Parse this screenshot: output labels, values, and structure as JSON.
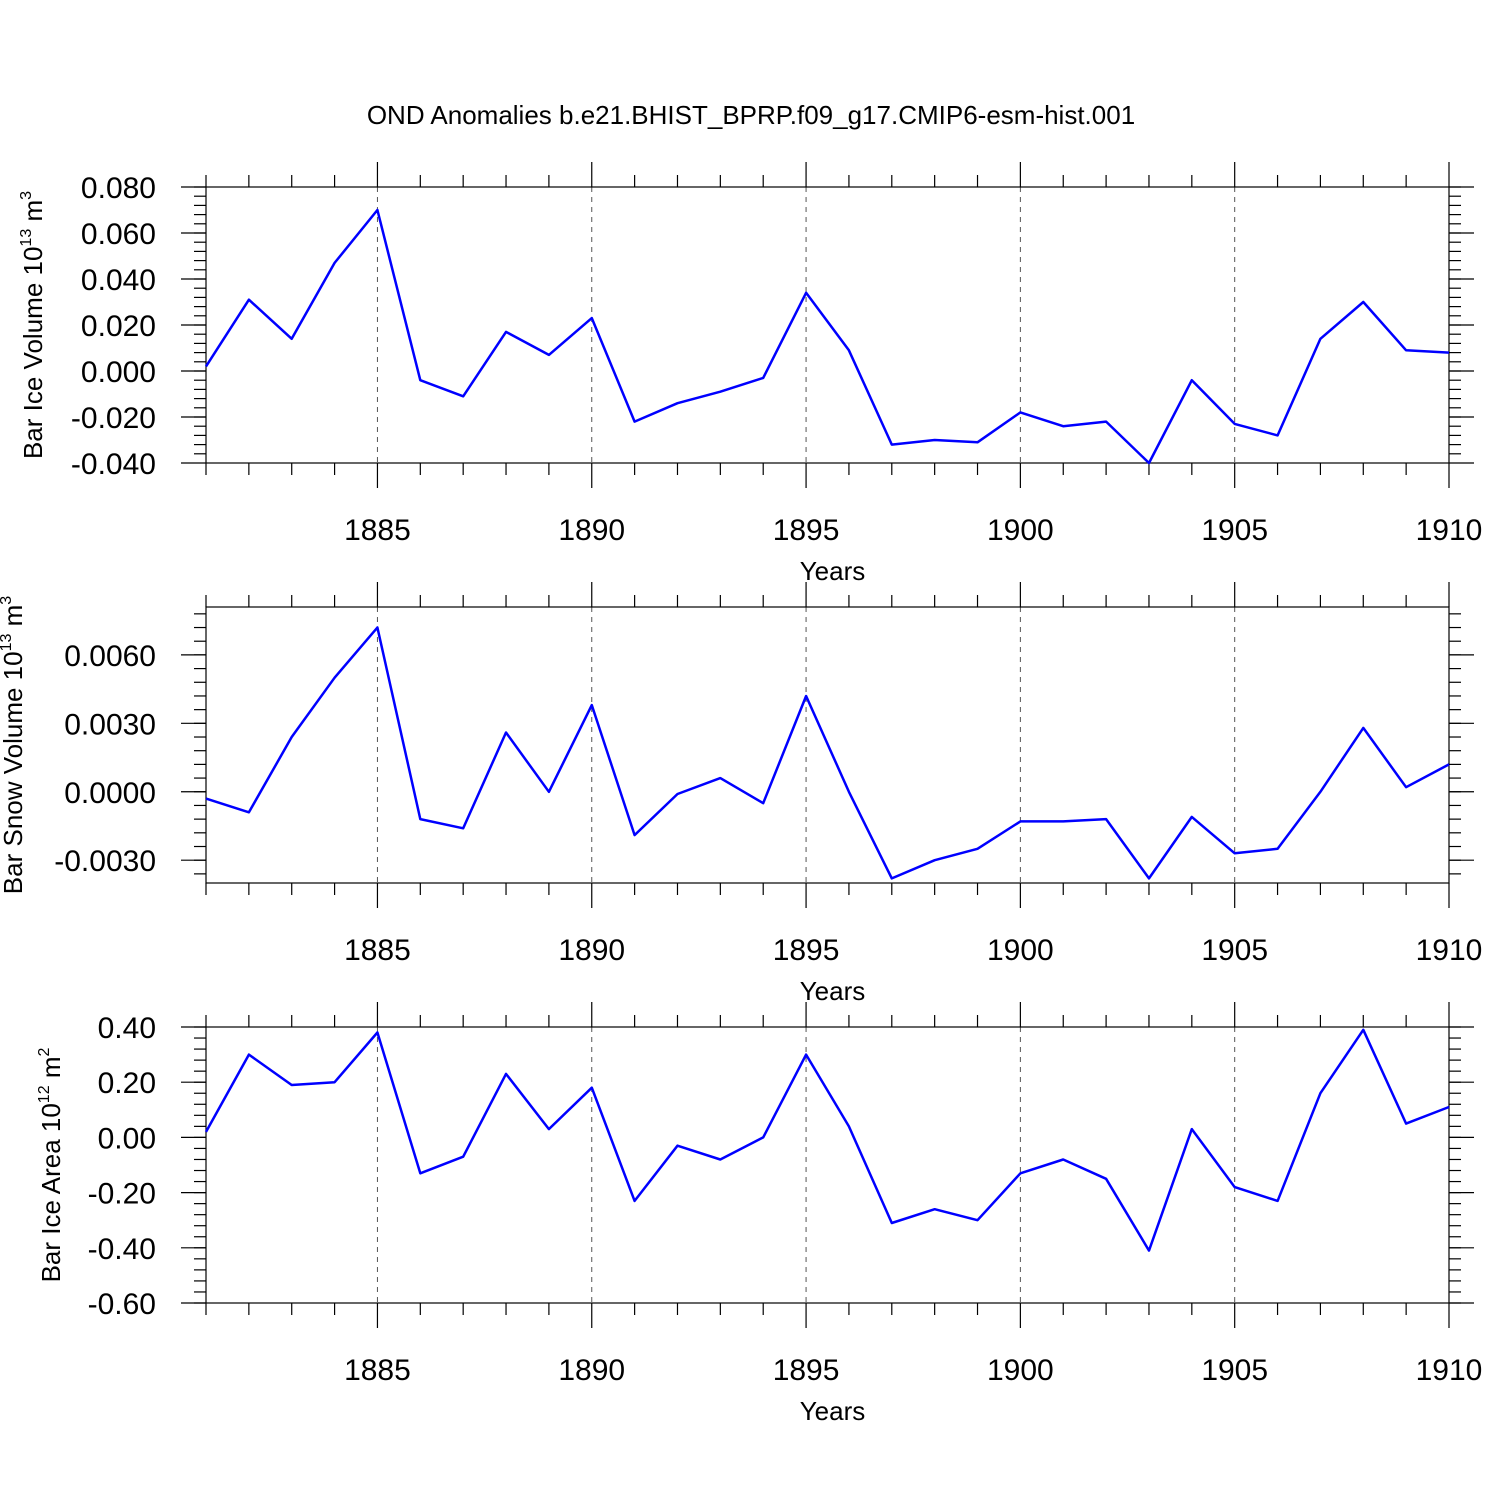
{
  "title": "OND Anomalies b.e21.BHIST_BPRP.f09_g17.CMIP6-esm-hist.001",
  "colors": {
    "line": "#0000ff",
    "axis": "#000000",
    "grid": "#555555"
  },
  "chart_data": [
    {
      "type": "line",
      "ylabel": {
        "text": "Bar Ice Volume 10",
        "sup": "13",
        "unit": " m",
        "unit_sup": "3"
      },
      "xlabel": "Years",
      "xlim": [
        1881,
        1910
      ],
      "ylim": [
        -0.04,
        0.08
      ],
      "xticks": [
        "1885",
        "1890",
        "1895",
        "1900",
        "1905",
        "1910"
      ],
      "yticks": [
        "0.080",
        "0.060",
        "0.040",
        "0.020",
        "0.000",
        "-0.020",
        "-0.040"
      ],
      "yticks_values": [
        0.08,
        0.06,
        0.04,
        0.02,
        0.0,
        -0.02,
        -0.04
      ],
      "grid": "vertical-dashed",
      "x": [
        1881,
        1882,
        1883,
        1884,
        1885,
        1886,
        1887,
        1888,
        1889,
        1890,
        1891,
        1892,
        1893,
        1894,
        1895,
        1896,
        1897,
        1898,
        1899,
        1900,
        1901,
        1902,
        1903,
        1904,
        1905,
        1906,
        1907,
        1908,
        1909,
        1910
      ],
      "series": [
        {
          "values": [
            0.002,
            0.031,
            0.014,
            0.047,
            0.07,
            -0.004,
            -0.011,
            0.017,
            0.007,
            0.023,
            -0.022,
            -0.014,
            -0.009,
            -0.003,
            0.034,
            0.009,
            -0.032,
            -0.03,
            -0.031,
            -0.018,
            -0.024,
            -0.022,
            -0.04,
            -0.004,
            -0.023,
            -0.028,
            0.014,
            0.03,
            0.009,
            0.008
          ]
        }
      ]
    },
    {
      "type": "line",
      "ylabel": {
        "text": "Bar Snow Volume 10",
        "sup": "13",
        "unit": " m",
        "unit_sup": "3"
      },
      "xlabel": "Years",
      "xlim": [
        1881,
        1910
      ],
      "ylim": [
        -0.004,
        0.0081
      ],
      "xticks": [
        "1885",
        "1890",
        "1895",
        "1900",
        "1905",
        "1910"
      ],
      "yticks": [
        "0.0060",
        "0.0030",
        "0.0000",
        "-0.0030"
      ],
      "yticks_values": [
        0.006,
        0.003,
        0.0,
        -0.003
      ],
      "grid": "vertical-dashed",
      "x": [
        1881,
        1882,
        1883,
        1884,
        1885,
        1886,
        1887,
        1888,
        1889,
        1890,
        1891,
        1892,
        1893,
        1894,
        1895,
        1896,
        1897,
        1898,
        1899,
        1900,
        1901,
        1902,
        1903,
        1904,
        1905,
        1906,
        1907,
        1908,
        1909,
        1910
      ],
      "series": [
        {
          "values": [
            -0.0003,
            -0.0009,
            0.0024,
            0.005,
            0.0072,
            -0.0012,
            -0.0016,
            0.0026,
            0.0,
            0.0038,
            -0.0019,
            -0.0001,
            0.0006,
            -0.0005,
            0.0042,
            0.0,
            -0.0038,
            -0.003,
            -0.0025,
            -0.0013,
            -0.0013,
            -0.0012,
            -0.0038,
            -0.0011,
            -0.0027,
            -0.0025,
            0.0,
            0.0028,
            0.0002,
            0.0012
          ]
        }
      ]
    },
    {
      "type": "line",
      "ylabel": {
        "text": "Bar Ice Area 10",
        "sup": "12",
        "unit": " m",
        "unit_sup": "2"
      },
      "xlabel": "Years",
      "xlim": [
        1881,
        1910
      ],
      "ylim": [
        -0.6,
        0.4
      ],
      "xticks": [
        "1885",
        "1890",
        "1895",
        "1900",
        "1905",
        "1910"
      ],
      "yticks": [
        "0.40",
        "0.20",
        "0.00",
        "-0.20",
        "-0.40",
        "-0.60"
      ],
      "yticks_values": [
        0.4,
        0.2,
        0.0,
        -0.2,
        -0.4,
        -0.6
      ],
      "grid": "vertical-dashed",
      "x": [
        1881,
        1882,
        1883,
        1884,
        1885,
        1886,
        1887,
        1888,
        1889,
        1890,
        1891,
        1892,
        1893,
        1894,
        1895,
        1896,
        1897,
        1898,
        1899,
        1900,
        1901,
        1902,
        1903,
        1904,
        1905,
        1906,
        1907,
        1908,
        1909,
        1910
      ],
      "series": [
        {
          "values": [
            0.02,
            0.3,
            0.19,
            0.2,
            0.38,
            -0.13,
            -0.07,
            0.23,
            0.03,
            0.18,
            -0.23,
            -0.03,
            -0.08,
            0.0,
            0.3,
            0.04,
            -0.31,
            -0.26,
            -0.3,
            -0.13,
            -0.08,
            -0.15,
            -0.41,
            0.03,
            -0.18,
            -0.23,
            0.16,
            0.39,
            0.05,
            0.11
          ]
        }
      ]
    }
  ]
}
